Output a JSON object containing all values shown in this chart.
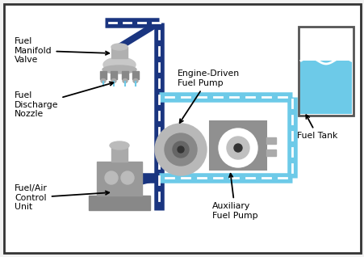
{
  "bg_color": "#f2f2f2",
  "border_color": "#333333",
  "pipe_dark": "#1a3580",
  "pipe_light_blue": "#6dcae8",
  "tank_water_color": "#6dcae8",
  "white": "#ffffff",
  "gray_light": "#c8c8c8",
  "gray_mid": "#999999",
  "gray_dark": "#666666",
  "labels": {
    "fuel_manifold": "Fuel\nManifold\nValve",
    "fuel_discharge": "Fuel\nDischarge\nNozzle",
    "engine_driven": "Engine-Driven\nFuel Pump",
    "fuel_tank": "Fuel Tank",
    "aux_fuel_pump": "Auxiliary\nFuel Pump",
    "fuel_air": "Fuel/Air\nControl\nUnit"
  },
  "pipe_lw": 9,
  "pipe_lw_light": 9
}
